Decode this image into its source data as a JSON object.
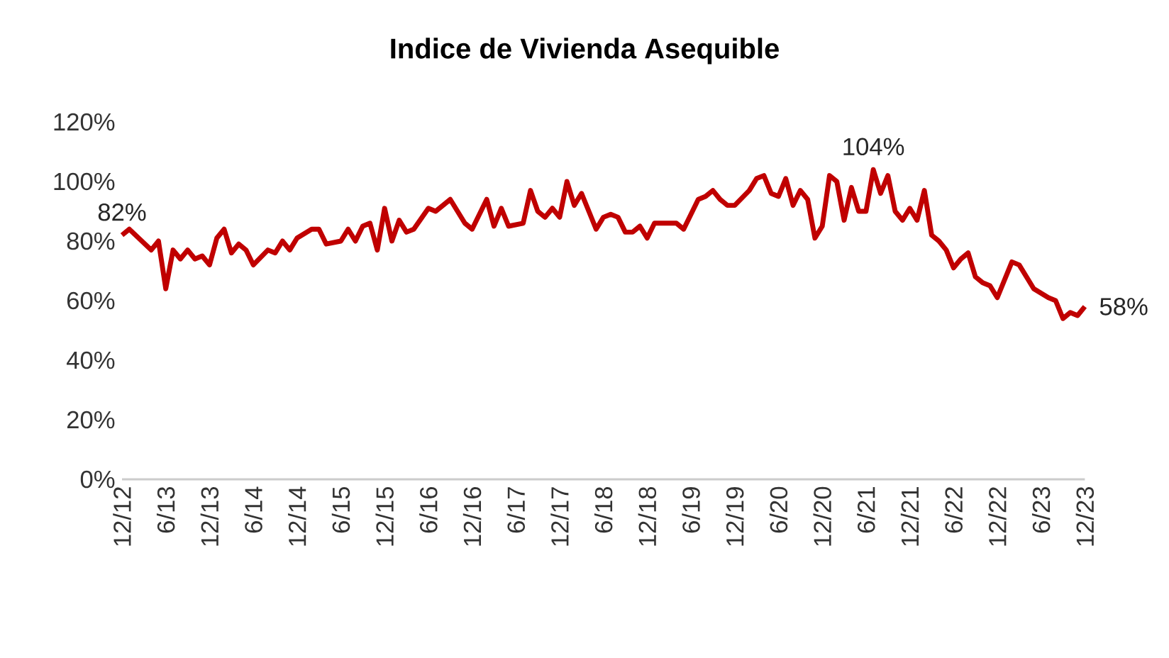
{
  "chart_data": {
    "type": "line",
    "title": "**Indice de Vivienda Asequible**",
    "x": [
      "2012-12",
      "2013-01",
      "2013-04",
      "2013-05",
      "2013-06",
      "2013-07",
      "2013-08",
      "2013-09",
      "2013-10",
      "2013-11",
      "2013-12",
      "2014-01",
      "2014-02",
      "2014-03",
      "2014-04",
      "2014-05",
      "2014-06",
      "2014-08",
      "2014-09",
      "2014-10",
      "2014-11",
      "2014-12",
      "2015-02",
      "2015-03",
      "2015-04",
      "2015-06",
      "2015-07",
      "2015-08",
      "2015-09",
      "2015-10",
      "2015-11",
      "2015-12",
      "2016-01",
      "2016-02",
      "2016-03",
      "2016-04",
      "2016-06",
      "2016-07",
      "2016-09",
      "2016-10",
      "2016-11",
      "2016-12",
      "2017-02",
      "2017-03",
      "2017-04",
      "2017-05",
      "2017-07",
      "2017-08",
      "2017-09",
      "2017-10",
      "2017-11",
      "2017-12",
      "2018-01",
      "2018-02",
      "2018-03",
      "2018-04",
      "2018-05",
      "2018-06",
      "2018-07",
      "2018-08",
      "2018-09",
      "2018-10",
      "2018-11",
      "2018-12",
      "2019-01",
      "2019-02",
      "2019-04",
      "2019-05",
      "2019-07",
      "2019-08",
      "2019-09",
      "2019-10",
      "2019-11",
      "2019-12",
      "2020-02",
      "2020-03",
      "2020-04",
      "2020-05",
      "2020-06",
      "2020-07",
      "2020-08",
      "2020-09",
      "2020-10",
      "2020-11",
      "2020-12",
      "2021-01",
      "2021-02",
      "2021-03",
      "2021-04",
      "2021-05",
      "2021-06",
      "2021-07",
      "2021-08",
      "2021-09",
      "2021-10",
      "2021-11",
      "2021-12",
      "2022-01",
      "2022-02",
      "2022-03",
      "2022-04",
      "2022-05",
      "2022-06",
      "2022-07",
      "2022-08",
      "2022-09",
      "2022-10",
      "2022-11",
      "2022-12",
      "2023-02",
      "2023-03",
      "2023-04",
      "2023-05",
      "2023-07",
      "2023-08",
      "2023-09",
      "2023-10",
      "2023-11",
      "2023-12"
    ],
    "series": [
      {
        "color": "#c00000",
        "values": [
          82,
          84,
          77,
          80,
          64,
          77,
          74,
          77,
          74,
          75,
          72,
          81,
          84,
          76,
          79,
          77,
          72,
          77,
          76,
          80,
          77,
          81,
          84,
          84,
          79,
          80,
          84,
          80,
          85,
          86,
          77,
          91,
          80,
          87,
          83,
          84,
          91,
          90,
          94,
          90,
          86,
          84,
          94,
          85,
          91,
          85,
          86,
          97,
          90,
          88,
          91,
          88,
          100,
          92,
          96,
          90,
          84,
          88,
          89,
          88,
          83,
          83,
          85,
          81,
          86,
          86,
          86,
          84,
          94,
          95,
          97,
          94,
          92,
          92,
          97,
          101,
          102,
          96,
          95,
          101,
          92,
          97,
          94,
          81,
          85,
          102,
          100,
          87,
          98,
          90,
          90,
          104,
          96,
          102,
          90,
          87,
          91,
          87,
          97,
          82,
          80,
          77,
          71,
          74,
          76,
          68,
          66,
          65,
          61,
          73,
          72,
          68,
          64,
          61,
          60,
          54,
          56,
          55,
          58
        ],
        "value_labels": [
          "82%",
          null,
          null,
          null,
          null,
          null,
          null,
          null,
          null,
          null,
          null,
          null,
          null,
          null,
          null,
          null,
          null,
          null,
          null,
          null,
          null,
          null,
          null,
          null,
          null,
          null,
          null,
          null,
          null,
          null,
          null,
          null,
          null,
          null,
          null,
          null,
          null,
          null,
          null,
          null,
          null,
          null,
          null,
          null,
          null,
          null,
          null,
          null,
          null,
          null,
          null,
          null,
          null,
          null,
          null,
          null,
          null,
          null,
          null,
          null,
          null,
          null,
          null,
          null,
          null,
          null,
          null,
          null,
          null,
          null,
          null,
          null,
          null,
          null,
          null,
          null,
          null,
          null,
          null,
          null,
          null,
          null,
          null,
          null,
          null,
          null,
          null,
          null,
          null,
          null,
          null,
          "104%",
          null,
          null,
          null,
          null,
          null,
          null,
          null,
          null,
          null,
          null,
          null,
          null,
          null,
          null,
          null,
          null,
          null,
          null,
          null,
          null,
          null,
          null,
          null,
          null,
          null,
          null,
          "58%"
        ]
      }
    ],
    "xlim": [
      "2012-12",
      "2023-12"
    ],
    "xticks": [
      {
        "value": "2012-12",
        "label": "12/12"
      },
      {
        "value": "2013-06",
        "label": "6/13"
      },
      {
        "value": "2013-12",
        "label": "12/13"
      },
      {
        "value": "2014-06",
        "label": "6/14"
      },
      {
        "value": "2014-12",
        "label": "12/14"
      },
      {
        "value": "2015-06",
        "label": "6/15"
      },
      {
        "value": "2015-12",
        "label": "12/15"
      },
      {
        "value": "2016-06",
        "label": "6/16"
      },
      {
        "value": "2016-12",
        "label": "12/16"
      },
      {
        "value": "2017-06",
        "label": "6/17"
      },
      {
        "value": "2017-12",
        "label": "12/17"
      },
      {
        "value": "2018-06",
        "label": "6/18"
      },
      {
        "value": "2018-12",
        "label": "12/18"
      },
      {
        "value": "2019-06",
        "label": "6/19"
      },
      {
        "value": "2019-12",
        "label": "12/19"
      },
      {
        "value": "2020-06",
        "label": "6/20"
      },
      {
        "value": "2020-12",
        "label": "12/20"
      },
      {
        "value": "2021-06",
        "label": "6/21"
      },
      {
        "value": "2021-12",
        "label": "12/21"
      },
      {
        "value": "2022-06",
        "label": "6/22"
      },
      {
        "value": "2022-12",
        "label": "12/22"
      },
      {
        "value": "2023-06",
        "label": "6/23"
      },
      {
        "value": "2023-12",
        "label": "12/23"
      }
    ],
    "ylim": [
      0,
      120
    ],
    "yticks": [
      {
        "value": 0,
        "label": "0%"
      },
      {
        "value": 20,
        "label": "20%"
      },
      {
        "value": 40,
        "label": "40%"
      },
      {
        "value": 60,
        "label": "60%"
      },
      {
        "value": 80,
        "label": "80%"
      },
      {
        "value": 100,
        "label": "100%"
      },
      {
        "value": 120,
        "label": "120%"
      }
    ]
  }
}
